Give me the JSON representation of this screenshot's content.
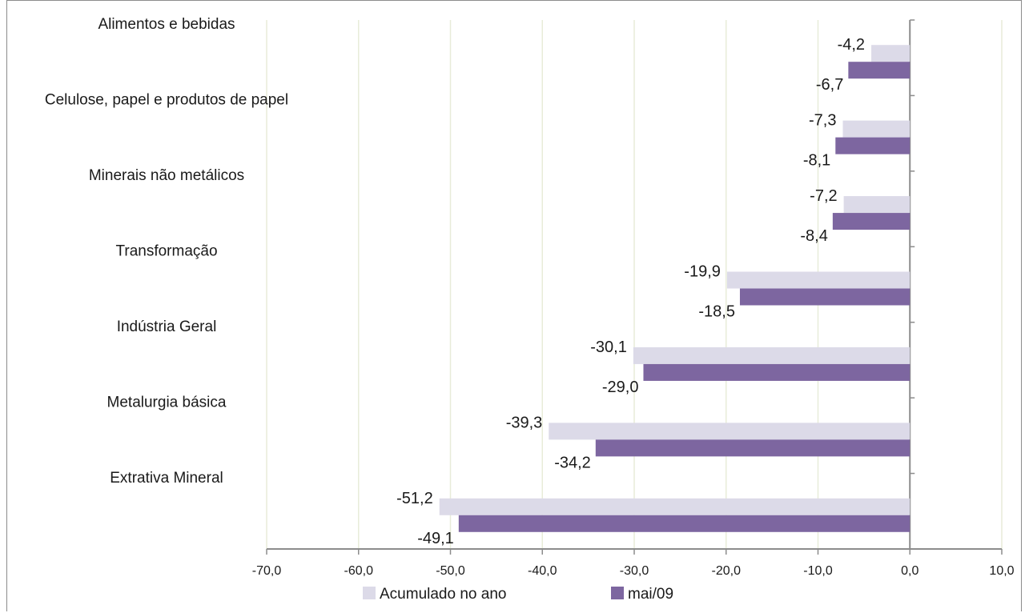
{
  "chart_data": {
    "type": "bar",
    "orientation": "horizontal",
    "categories": [
      "Alimentos e bebidas",
      "Celulose, papel e produtos de papel",
      "Minerais não metálicos",
      "Transformação",
      "Indústria Geral",
      "Metalurgia básica",
      "Extrativa Mineral"
    ],
    "series": [
      {
        "name": "Acumulado no ano",
        "color": "#dcdae8",
        "values": [
          -4.2,
          -7.3,
          -7.2,
          -19.9,
          -30.1,
          -39.3,
          -51.2
        ],
        "labels": [
          "-4,2",
          "-7,3",
          "-7,2",
          "-19,9",
          "-30,1",
          "-39,3",
          "-51,2"
        ]
      },
      {
        "name": "mai/09",
        "color": "#7d66a0",
        "values": [
          -6.7,
          -8.1,
          -8.4,
          -18.5,
          -29.0,
          -34.2,
          -49.1
        ],
        "labels": [
          "-6,7",
          "-8,1",
          "-8,4",
          "-18,5",
          "-29,0",
          "-34,2",
          "-49,1"
        ]
      }
    ],
    "xlim": [
      -70,
      10
    ],
    "xticks": [
      -70,
      -60,
      -50,
      -40,
      -30,
      -20,
      -10,
      0,
      10
    ],
    "xtick_labels": [
      "-70,0",
      "-60,0",
      "-50,0",
      "-40,0",
      "-30,0",
      "-20,0",
      "-10,0",
      "0,0",
      "10,0"
    ],
    "grid": "vertical",
    "legend_position": "bottom",
    "title": "",
    "xlabel": "",
    "ylabel": ""
  }
}
